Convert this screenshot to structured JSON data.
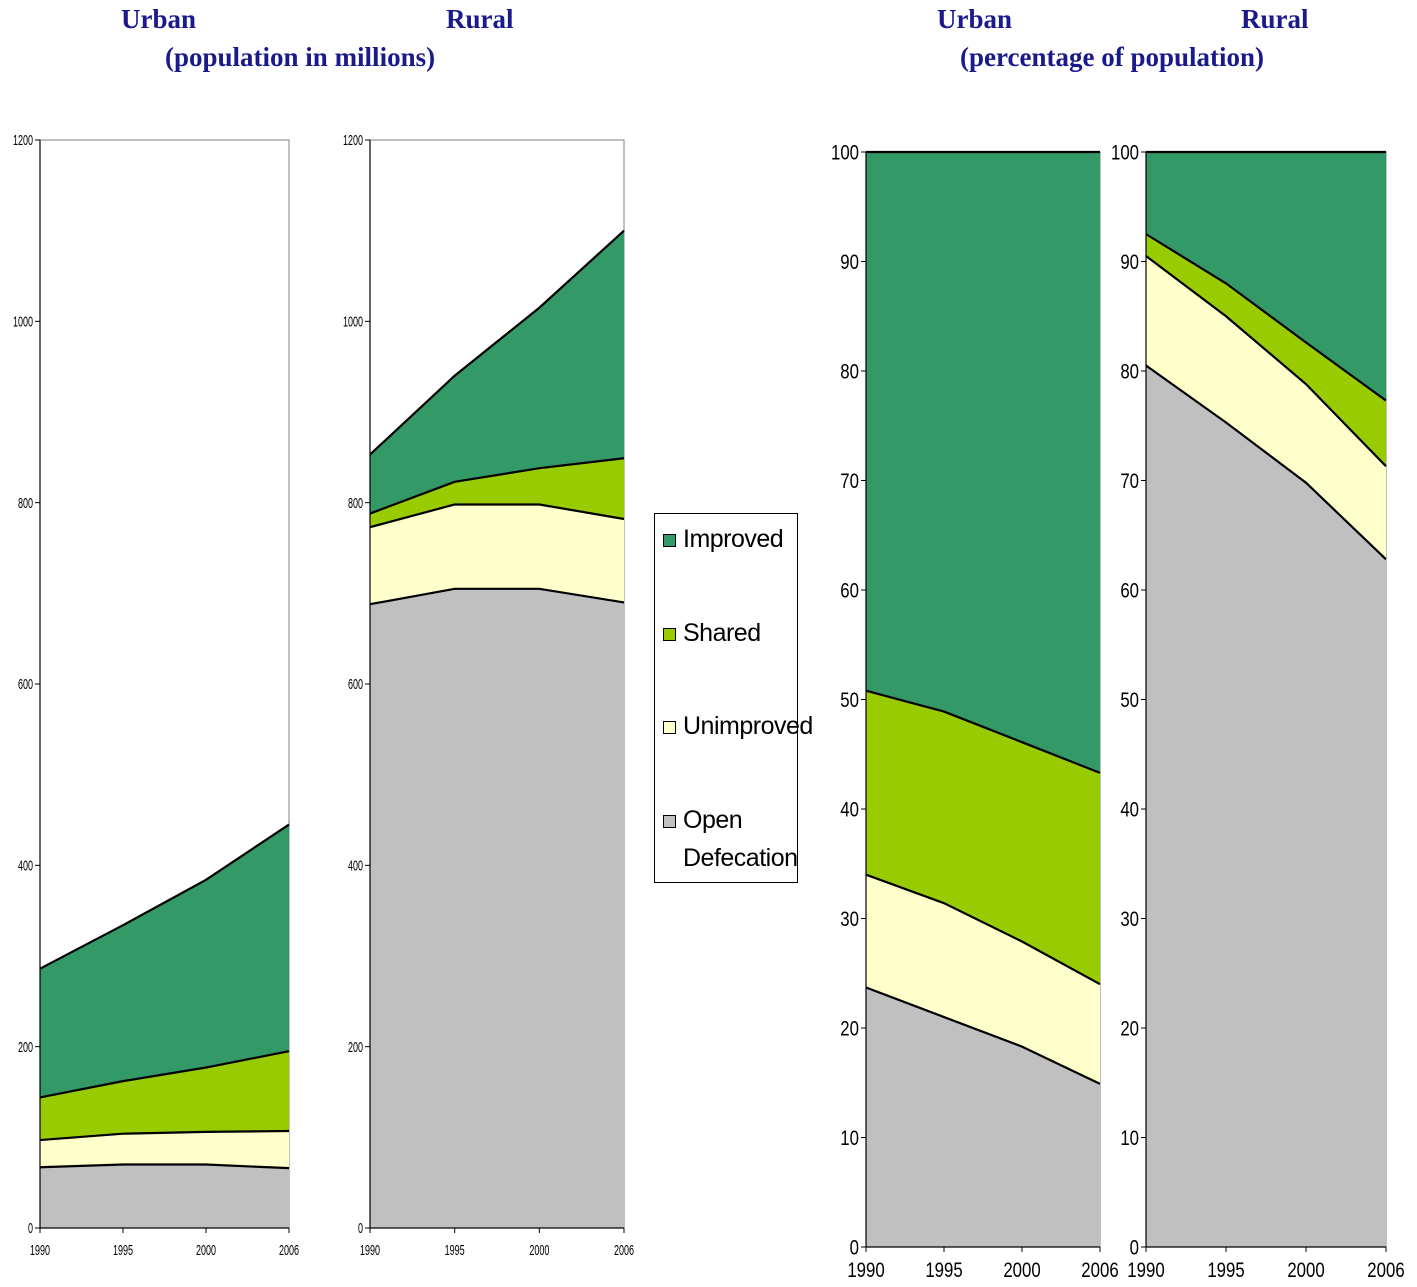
{
  "titles": {
    "left_urban": "Urban",
    "left_rural": "Rural",
    "left_sub": "(population in millions)",
    "right_urban": "Urban",
    "right_rural": "Rural",
    "right_sub": "(percentage of population)"
  },
  "legend": [
    {
      "label": "Improved",
      "color": "#339966"
    },
    {
      "label": "Shared",
      "color": "#99cc00"
    },
    {
      "label": "Unimproved",
      "color": "#ffffcc"
    },
    {
      "label": "Open Defecation",
      "color": "#c0c0c0"
    }
  ],
  "chart_data": [
    {
      "type": "area",
      "stacked": true,
      "title": "Urban (population in millions)",
      "x": [
        "1990",
        "1995",
        "2000",
        "2006"
      ],
      "ylim": [
        0,
        1200
      ],
      "yticks": [
        0,
        200,
        400,
        600,
        800,
        1000,
        1200
      ],
      "series": [
        {
          "name": "Open Defecation",
          "values": [
            67,
            70,
            70,
            66
          ],
          "color": "#c0c0c0"
        },
        {
          "name": "Unimproved",
          "values": [
            30,
            34,
            36,
            41
          ],
          "color": "#ffffcc"
        },
        {
          "name": "Shared",
          "values": [
            47,
            58,
            71,
            88
          ],
          "color": "#99cc00"
        },
        {
          "name": "Improved",
          "values": [
            142,
            172,
            207,
            250
          ],
          "color": "#339966"
        }
      ]
    },
    {
      "type": "area",
      "stacked": true,
      "title": "Rural (population in millions)",
      "x": [
        "1990",
        "1995",
        "2000",
        "2006"
      ],
      "ylim": [
        0,
        1200
      ],
      "yticks": [
        0,
        200,
        400,
        600,
        800,
        1000,
        1200
      ],
      "series": [
        {
          "name": "Open Defecation",
          "values": [
            688,
            705,
            705,
            690
          ],
          "color": "#c0c0c0"
        },
        {
          "name": "Unimproved",
          "values": [
            85,
            93,
            93,
            92
          ],
          "color": "#ffffcc"
        },
        {
          "name": "Shared",
          "values": [
            15,
            25,
            40,
            67
          ],
          "color": "#99cc00"
        },
        {
          "name": "Improved",
          "values": [
            65,
            117,
            177,
            251
          ],
          "color": "#339966"
        }
      ]
    },
    {
      "type": "area",
      "stacked": true,
      "title": "Urban (percentage of population)",
      "x": [
        "1990",
        "1995",
        "2000",
        "2006"
      ],
      "ylim": [
        0,
        100
      ],
      "yticks": [
        0,
        10,
        20,
        30,
        40,
        50,
        60,
        70,
        80,
        90,
        100
      ],
      "series": [
        {
          "name": "Open Defecation",
          "values": [
            23.7,
            21,
            18.3,
            14.9
          ],
          "color": "#c0c0c0"
        },
        {
          "name": "Unimproved",
          "values": [
            10.3,
            10.4,
            9.6,
            9.1
          ],
          "color": "#ffffcc"
        },
        {
          "name": "Shared",
          "values": [
            16.8,
            17.5,
            18.2,
            19.3
          ],
          "color": "#99cc00"
        },
        {
          "name": "Improved",
          "values": [
            49.2,
            51.1,
            53.9,
            56.7
          ],
          "color": "#339966"
        }
      ]
    },
    {
      "type": "area",
      "stacked": true,
      "title": "Rural (percentage of population)",
      "x": [
        "1990",
        "1995",
        "2000",
        "2006"
      ],
      "ylim": [
        0,
        100
      ],
      "yticks": [
        0,
        10,
        20,
        30,
        40,
        50,
        60,
        70,
        80,
        90,
        100
      ],
      "series": [
        {
          "name": "Open Defecation",
          "values": [
            80.5,
            75.3,
            69.8,
            62.8
          ],
          "color": "#c0c0c0"
        },
        {
          "name": "Unimproved",
          "values": [
            10,
            9.7,
            9,
            8.5
          ],
          "color": "#ffffcc"
        },
        {
          "name": "Shared",
          "values": [
            2,
            3,
            3.8,
            6
          ],
          "color": "#99cc00"
        },
        {
          "name": "Improved",
          "values": [
            7.5,
            12,
            17.4,
            22.7
          ],
          "color": "#339966"
        }
      ]
    }
  ]
}
